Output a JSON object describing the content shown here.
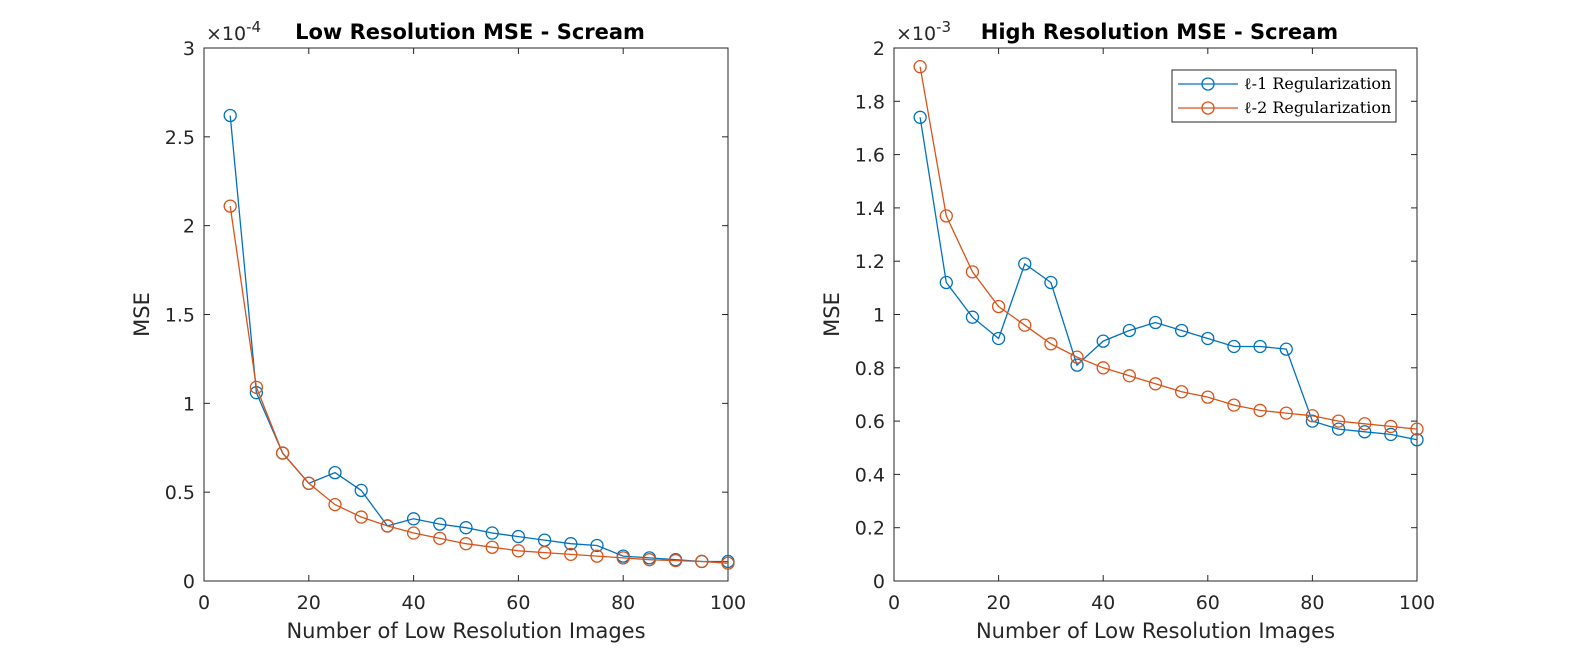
{
  "chart_data": [
    {
      "type": "line",
      "title": "Low Resolution MSE - Scream",
      "xlabel": "Number of Low Resolution Images",
      "ylabel": "MSE",
      "y_exponent_label": "×10",
      "y_exponent_power": "-4",
      "xlim": [
        0,
        100
      ],
      "ylim": [
        0,
        3
      ],
      "x_ticks": [
        0,
        20,
        40,
        60,
        80,
        100
      ],
      "y_ticks": [
        0,
        0.5,
        1,
        1.5,
        2,
        2.5,
        3
      ],
      "x_tick_labels": [
        "0",
        "20",
        "40",
        "60",
        "80",
        "100"
      ],
      "y_tick_labels": [
        "0",
        "0.5",
        "1",
        "1.5",
        "2",
        "2.5",
        "3"
      ],
      "legend": null,
      "x": [
        5,
        10,
        15,
        20,
        25,
        30,
        35,
        40,
        45,
        50,
        55,
        60,
        65,
        70,
        75,
        80,
        85,
        90,
        95,
        100
      ],
      "series": [
        {
          "color": "#0072BD",
          "values": [
            2.62,
            1.06,
            0.72,
            0.55,
            0.61,
            0.51,
            0.31,
            0.35,
            0.32,
            0.3,
            0.27,
            0.25,
            0.23,
            0.21,
            0.2,
            0.14,
            0.13,
            0.12,
            0.11,
            0.11
          ]
        },
        {
          "color": "#D95319",
          "values": [
            2.11,
            1.09,
            0.72,
            0.55,
            0.43,
            0.36,
            0.31,
            0.27,
            0.24,
            0.21,
            0.19,
            0.17,
            0.16,
            0.15,
            0.14,
            0.13,
            0.12,
            0.115,
            0.11,
            0.1
          ]
        }
      ]
    },
    {
      "type": "line",
      "title": "High Resolution MSE - Scream",
      "xlabel": "Number of Low Resolution Images",
      "ylabel": "MSE",
      "y_exponent_label": "×10",
      "y_exponent_power": "-3",
      "xlim": [
        0,
        100
      ],
      "ylim": [
        0,
        2
      ],
      "x_ticks": [
        0,
        20,
        40,
        60,
        80,
        100
      ],
      "y_ticks": [
        0,
        0.2,
        0.4,
        0.6,
        0.8,
        1,
        1.2,
        1.4,
        1.6,
        1.8,
        2
      ],
      "x_tick_labels": [
        "0",
        "20",
        "40",
        "60",
        "80",
        "100"
      ],
      "y_tick_labels": [
        "0",
        "0.2",
        "0.4",
        "0.6",
        "0.8",
        "1",
        "1.2",
        "1.4",
        "1.6",
        "1.8",
        "2"
      ],
      "legend": "top-right",
      "x": [
        5,
        10,
        15,
        20,
        25,
        30,
        35,
        40,
        45,
        50,
        55,
        60,
        65,
        70,
        75,
        80,
        85,
        90,
        95,
        100
      ],
      "series": [
        {
          "name": "ℓ-1 Regularization",
          "color": "#0072BD",
          "values": [
            1.74,
            1.12,
            0.99,
            0.91,
            1.19,
            1.12,
            0.81,
            0.9,
            0.94,
            0.97,
            0.94,
            0.91,
            0.88,
            0.88,
            0.87,
            0.6,
            0.57,
            0.56,
            0.55,
            0.53
          ]
        },
        {
          "name": "ℓ-2 Regularization",
          "color": "#D95319",
          "values": [
            1.93,
            1.37,
            1.16,
            1.03,
            0.96,
            0.89,
            0.84,
            0.8,
            0.77,
            0.74,
            0.71,
            0.69,
            0.66,
            0.64,
            0.63,
            0.62,
            0.6,
            0.59,
            0.58,
            0.57
          ]
        }
      ]
    }
  ]
}
